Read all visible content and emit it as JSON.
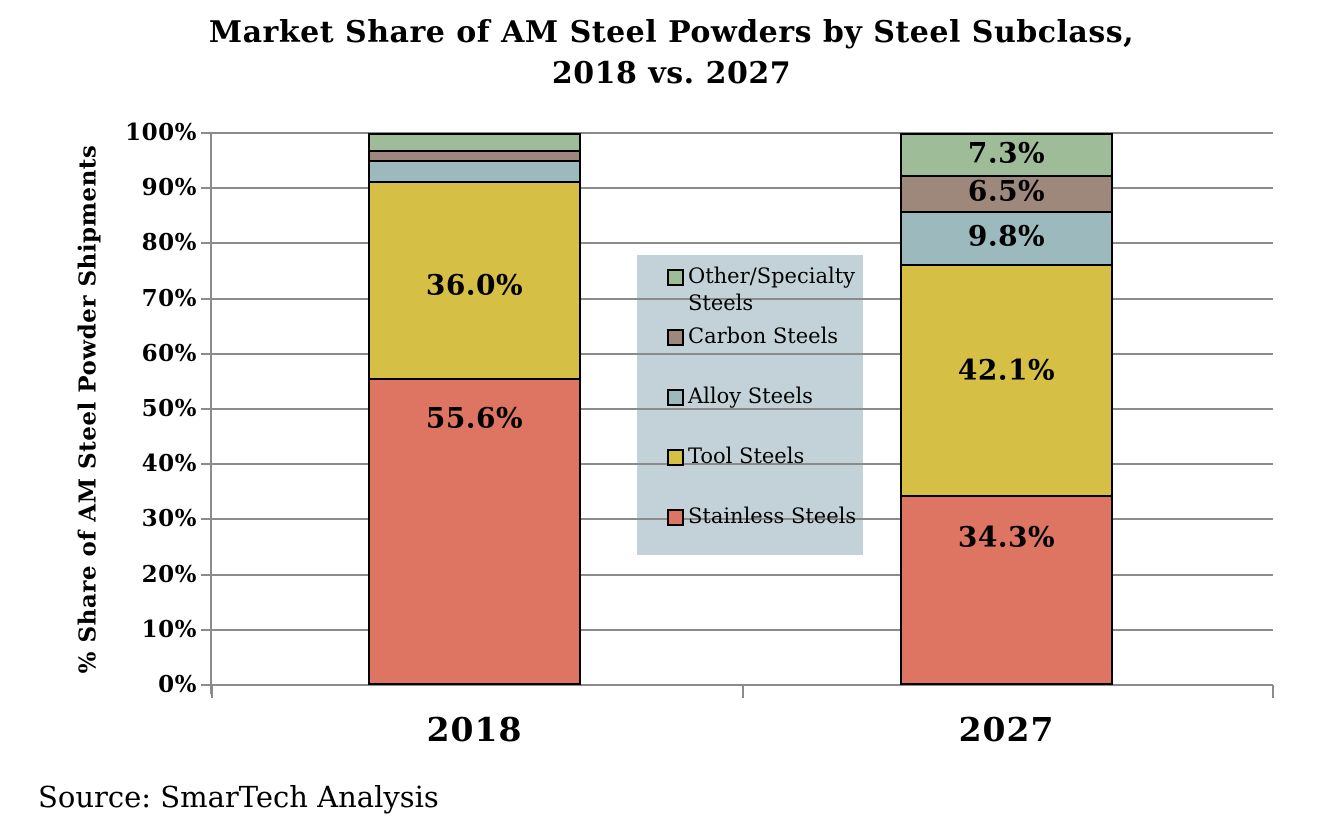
{
  "chart_data": {
    "type": "bar",
    "subtype": "stacked-100-percent-column",
    "title": "Market Share of AM Steel Powders by Steel Subclass,\n2018 vs. 2027",
    "ylabel": "% Share of AM Steel Powder Shipments",
    "xlabel": "",
    "ylim": [
      0,
      100
    ],
    "y_tick_labels": [
      "0%",
      "10%",
      "20%",
      "30%",
      "40%",
      "50%",
      "60%",
      "70%",
      "80%",
      "90%",
      "100%"
    ],
    "grid": true,
    "legend_position": "center-between-bars",
    "categories": [
      "2018",
      "2027"
    ],
    "series": [
      {
        "name": "Stainless Steels",
        "color": "#dd7562",
        "values": [
          55.6,
          34.3
        ],
        "labels": [
          "55.6%",
          "34.3%"
        ]
      },
      {
        "name": "Tool Steels",
        "color": "#d5bf45",
        "values": [
          36.0,
          42.1
        ],
        "labels": [
          "36.0%",
          "42.1%"
        ]
      },
      {
        "name": "Alloy Steels",
        "color": "#9cbabd",
        "values": [
          3.8,
          9.8
        ],
        "labels": [
          "",
          "9.8%"
        ]
      },
      {
        "name": "Carbon Steels",
        "color": "#9d887b",
        "values": [
          1.8,
          6.5
        ],
        "labels": [
          "",
          "6.5%"
        ]
      },
      {
        "name": "Other/Specialty Steels",
        "color": "#9fbc99",
        "values": [
          2.8,
          7.3
        ],
        "labels": [
          "",
          "7.3%"
        ]
      }
    ],
    "source": "Source: SmarTech Analysis"
  },
  "colors": {
    "background": "#ffffff",
    "gridline": "#8b8b8b",
    "bar_border": "#000000",
    "legend_background": "#c3d2d9",
    "text": "#000000"
  }
}
